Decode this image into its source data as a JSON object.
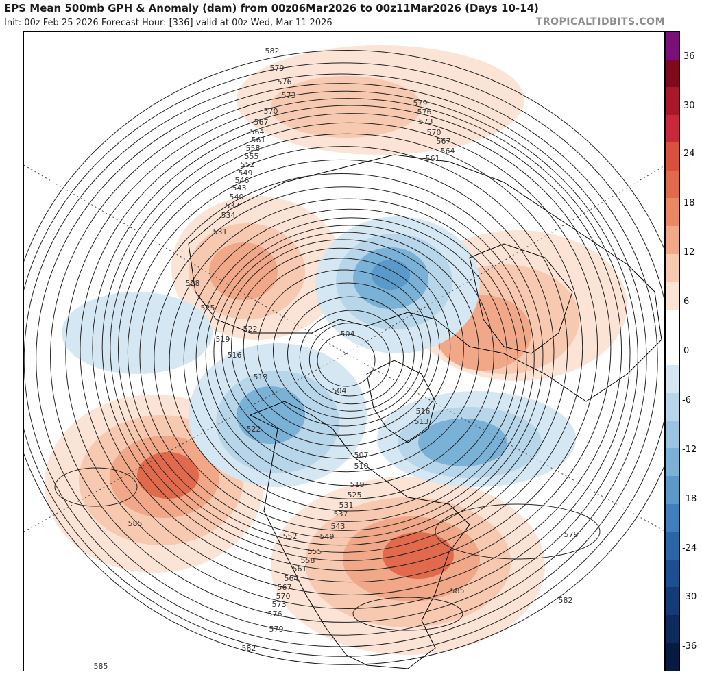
{
  "header": {
    "title": "EPS Mean 500mb GPH & Anomaly (dam) from 00z06Mar2026 to 00z11Mar2026 (Days 10-14)",
    "subtitle": "Init: 00z Feb 25 2026   Forecast Hour: [336]   valid at 00z Wed, Mar 11 2026",
    "brand": "TROPICALTIDBITS.COM"
  },
  "colorbar": {
    "tick_labels": [
      "36",
      "30",
      "24",
      "18",
      "12",
      "6",
      "0",
      "-6",
      "-12",
      "-18",
      "-24",
      "-30",
      "-36"
    ],
    "colors": [
      "#7a0f7a",
      "#7f0a1e",
      "#a8182a",
      "#c8283a",
      "#d9503e",
      "#e26a4c",
      "#ea8866",
      "#f0a888",
      "#f6c9b0",
      "#fbe3d5",
      "#ffffff",
      "#ffffff",
      "#d5e7f2",
      "#b8d6ea",
      "#9ac4e1",
      "#7ab1d6",
      "#5a9acb",
      "#3d80bd",
      "#2866a8",
      "#1b4f91",
      "#143b77",
      "#0d2a5c",
      "#071a42"
    ]
  },
  "map": {
    "anomaly_colors": {
      "pos1": "#fbe3d5",
      "pos2": "#f6c9b0",
      "pos3": "#f0a888",
      "pos4": "#e26a4c",
      "pos5": "#c8283a",
      "neg1": "#d5e7f2",
      "neg2": "#b8d6ea",
      "neg3": "#7ab1d6",
      "neg4": "#5a9acb"
    },
    "contour_labels": [
      "582",
      "579",
      "576",
      "573",
      "570",
      "567",
      "564",
      "561",
      "558",
      "555",
      "552",
      "549",
      "546",
      "543",
      "540",
      "537",
      "534",
      "531",
      "528",
      "525",
      "522",
      "519",
      "516",
      "513",
      "579",
      "576",
      "573",
      "570",
      "567",
      "564",
      "561",
      "504",
      "504",
      "507",
      "510",
      "513",
      "516",
      "519",
      "525",
      "531",
      "537",
      "543",
      "549",
      "552",
      "555",
      "558",
      "561",
      "564",
      "567",
      "570",
      "573",
      "576",
      "579",
      "582",
      "585",
      "579",
      "582",
      "585",
      "585",
      "522"
    ]
  }
}
